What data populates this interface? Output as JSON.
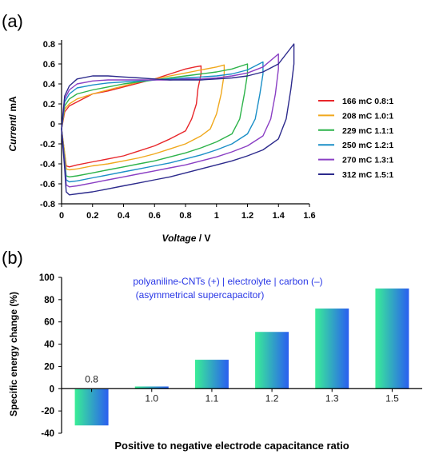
{
  "chart_data": [
    {
      "panel": "(a)",
      "type": "line",
      "xlabel_italic": "Voltage",
      "xlabel_rest": " / V",
      "ylabel_italic": "Current",
      "ylabel_rest": "/ mA",
      "xlim": [
        0,
        1.6
      ],
      "ylim": [
        -0.8,
        0.8
      ],
      "xticks": [
        "0",
        "0.2",
        "0.4",
        "0.6",
        "0.8",
        "1",
        "1.2",
        "1.4",
        "1.6"
      ],
      "yticks": [
        "-0.8",
        "-0.6",
        "-0.4",
        "-0.2",
        "0",
        "0.2",
        "0.4",
        "0.6",
        "0.8"
      ],
      "legend_position": "right",
      "series": [
        {
          "name": "166 mC 0.8:1",
          "color": "#e8262a",
          "x": [
            0,
            0.02,
            0.05,
            0.1,
            0.2,
            0.3,
            0.4,
            0.5,
            0.6,
            0.7,
            0.8,
            0.86,
            0.9,
            0.9,
            0.88,
            0.87,
            0.84,
            0.8,
            0.7,
            0.6,
            0.5,
            0.4,
            0.3,
            0.2,
            0.1,
            0.05,
            0.03,
            0.02,
            0
          ],
          "y": [
            -0.05,
            0.12,
            0.18,
            0.22,
            0.3,
            0.33,
            0.37,
            0.41,
            0.45,
            0.5,
            0.55,
            0.57,
            0.58,
            0.5,
            0.35,
            0.2,
            0.05,
            -0.07,
            -0.15,
            -0.22,
            -0.27,
            -0.32,
            -0.35,
            -0.38,
            -0.41,
            -0.43,
            -0.42,
            -0.3,
            -0.05
          ]
        },
        {
          "name": "208 mC 1.0:1",
          "color": "#f0a81c",
          "x": [
            0,
            0.02,
            0.05,
            0.1,
            0.2,
            0.3,
            0.4,
            0.5,
            0.6,
            0.7,
            0.8,
            0.9,
            1.0,
            1.05,
            1.05,
            1.03,
            1.0,
            0.96,
            0.9,
            0.8,
            0.7,
            0.6,
            0.5,
            0.4,
            0.3,
            0.2,
            0.1,
            0.05,
            0.03,
            0.02,
            0
          ],
          "y": [
            -0.05,
            0.15,
            0.2,
            0.25,
            0.3,
            0.34,
            0.38,
            0.42,
            0.45,
            0.48,
            0.51,
            0.54,
            0.57,
            0.59,
            0.5,
            0.3,
            0.1,
            -0.05,
            -0.12,
            -0.2,
            -0.25,
            -0.3,
            -0.34,
            -0.37,
            -0.4,
            -0.42,
            -0.45,
            -0.46,
            -0.45,
            -0.3,
            -0.05
          ]
        },
        {
          "name": "229 mC 1.1:1",
          "color": "#2db34a",
          "x": [
            0,
            0.02,
            0.05,
            0.1,
            0.2,
            0.3,
            0.4,
            0.5,
            0.6,
            0.7,
            0.8,
            0.9,
            1.0,
            1.1,
            1.2,
            1.2,
            1.18,
            1.15,
            1.1,
            1.0,
            0.9,
            0.8,
            0.7,
            0.6,
            0.5,
            0.4,
            0.3,
            0.2,
            0.1,
            0.05,
            0.03,
            0.02,
            0
          ],
          "y": [
            -0.05,
            0.18,
            0.25,
            0.3,
            0.34,
            0.37,
            0.4,
            0.42,
            0.44,
            0.46,
            0.48,
            0.5,
            0.52,
            0.55,
            0.6,
            0.5,
            0.3,
            0.05,
            -0.1,
            -0.18,
            -0.24,
            -0.29,
            -0.33,
            -0.37,
            -0.4,
            -0.43,
            -0.46,
            -0.49,
            -0.52,
            -0.53,
            -0.52,
            -0.35,
            -0.05
          ]
        },
        {
          "name": "250 mC 1.2:1",
          "color": "#1b8fc7",
          "x": [
            0,
            0.02,
            0.05,
            0.1,
            0.2,
            0.3,
            0.4,
            0.5,
            0.6,
            0.7,
            0.8,
            0.9,
            1.0,
            1.1,
            1.2,
            1.3,
            1.3,
            1.28,
            1.25,
            1.2,
            1.1,
            1.0,
            0.9,
            0.8,
            0.7,
            0.6,
            0.5,
            0.4,
            0.3,
            0.2,
            0.1,
            0.05,
            0.03,
            0.02,
            0
          ],
          "y": [
            -0.05,
            0.22,
            0.3,
            0.36,
            0.39,
            0.41,
            0.42,
            0.43,
            0.44,
            0.45,
            0.46,
            0.47,
            0.48,
            0.5,
            0.54,
            0.62,
            0.5,
            0.3,
            0.05,
            -0.1,
            -0.2,
            -0.26,
            -0.31,
            -0.35,
            -0.39,
            -0.42,
            -0.45,
            -0.48,
            -0.51,
            -0.54,
            -0.57,
            -0.58,
            -0.56,
            -0.38,
            -0.05
          ]
        },
        {
          "name": "270 mC 1.3:1",
          "color": "#8a3fc4",
          "x": [
            0,
            0.02,
            0.05,
            0.1,
            0.2,
            0.3,
            0.4,
            0.5,
            0.6,
            0.7,
            0.8,
            0.9,
            1.0,
            1.1,
            1.2,
            1.3,
            1.4,
            1.4,
            1.38,
            1.35,
            1.3,
            1.2,
            1.1,
            1.0,
            0.9,
            0.8,
            0.7,
            0.6,
            0.5,
            0.4,
            0.3,
            0.2,
            0.1,
            0.05,
            0.03,
            0.02,
            0
          ],
          "y": [
            -0.05,
            0.25,
            0.34,
            0.4,
            0.43,
            0.44,
            0.44,
            0.44,
            0.44,
            0.44,
            0.45,
            0.45,
            0.46,
            0.48,
            0.51,
            0.57,
            0.7,
            0.55,
            0.3,
            0.05,
            -0.12,
            -0.22,
            -0.28,
            -0.33,
            -0.37,
            -0.41,
            -0.44,
            -0.47,
            -0.5,
            -0.53,
            -0.56,
            -0.59,
            -0.62,
            -0.63,
            -0.61,
            -0.4,
            -0.05
          ]
        },
        {
          "name": "312 mC 1.5:1",
          "color": "#2c2a8c",
          "x": [
            0,
            0.02,
            0.05,
            0.1,
            0.2,
            0.3,
            0.4,
            0.5,
            0.6,
            0.7,
            0.8,
            0.9,
            1.0,
            1.1,
            1.2,
            1.3,
            1.4,
            1.5,
            1.5,
            1.48,
            1.45,
            1.4,
            1.3,
            1.2,
            1.1,
            1.0,
            0.9,
            0.8,
            0.7,
            0.6,
            0.5,
            0.4,
            0.3,
            0.2,
            0.1,
            0.05,
            0.03,
            0.02,
            0
          ],
          "y": [
            -0.05,
            0.28,
            0.38,
            0.45,
            0.48,
            0.48,
            0.47,
            0.46,
            0.45,
            0.44,
            0.44,
            0.44,
            0.45,
            0.46,
            0.48,
            0.52,
            0.6,
            0.8,
            0.6,
            0.35,
            0.05,
            -0.15,
            -0.26,
            -0.32,
            -0.37,
            -0.41,
            -0.45,
            -0.49,
            -0.53,
            -0.56,
            -0.59,
            -0.62,
            -0.65,
            -0.68,
            -0.7,
            -0.71,
            -0.68,
            -0.45,
            -0.05
          ]
        }
      ]
    },
    {
      "panel": "(b)",
      "type": "bar",
      "categories": [
        "0.8",
        "1.0",
        "1.1",
        "1.2",
        "1.3",
        "1.5"
      ],
      "values": [
        -33,
        2,
        26,
        51,
        72,
        90
      ],
      "ylabel": "Specific energy change (%)",
      "xlabel": "Positive to negative electrode capacitance ratio",
      "ylim": [
        -40,
        100
      ],
      "yticks": [
        "-40",
        "-20",
        "0",
        "20",
        "40",
        "60",
        "80",
        "100"
      ],
      "annotation_line1": "polyaniline-CNTs (+) | electrolyte | carbon (–)",
      "annotation_line2": "(asymmetrical supercapacitor)",
      "bar_gradient": [
        "#39ee96",
        "#2a5ef0"
      ]
    }
  ]
}
